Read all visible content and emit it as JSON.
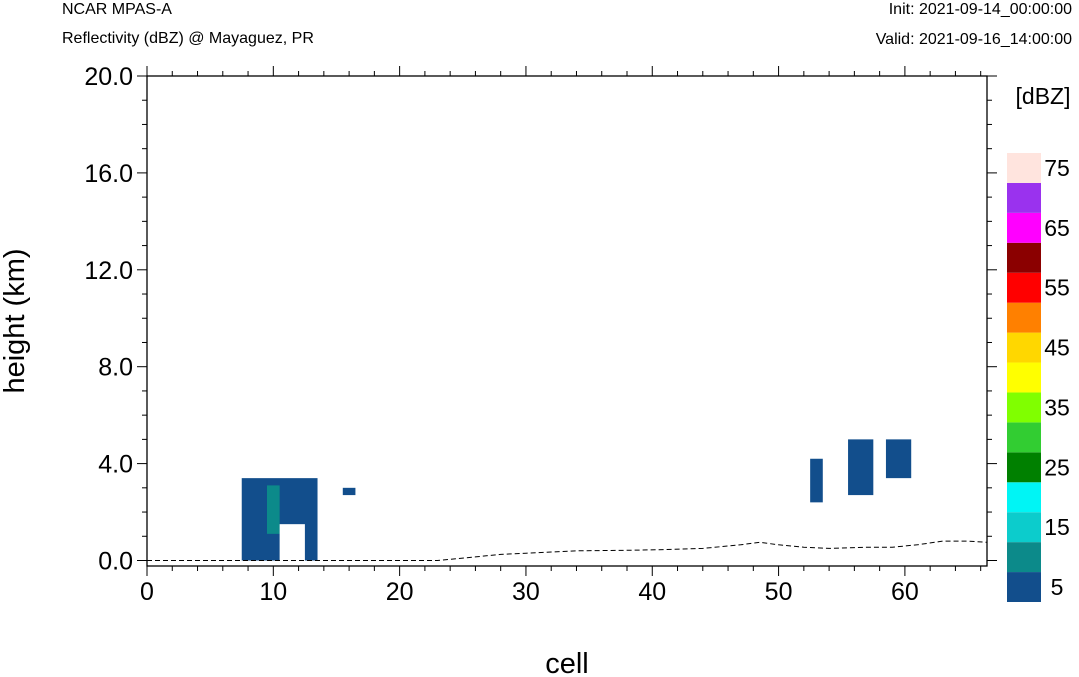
{
  "header": {
    "left_line1": "NCAR MPAS-A",
    "left_line2": "Reflectivity (dBZ) @ Mayaguez, PR",
    "right_line1": "Init: 2021-09-14_00:00:00",
    "right_line2": "Valid: 2021-09-16_14:00:00"
  },
  "chart_data": {
    "type": "heatmap",
    "title": "Reflectivity (dBZ) @ Mayaguez, PR",
    "xlabel": "cell",
    "ylabel": "height (km)",
    "xlim": [
      0,
      66.5
    ],
    "ylim": [
      0,
      20
    ],
    "x_ticks": [
      0,
      10,
      20,
      30,
      40,
      50,
      60
    ],
    "x_tick_labels": [
      "0",
      "10",
      "20",
      "30",
      "40",
      "50",
      "60"
    ],
    "y_ticks": [
      0,
      4,
      8,
      12,
      16,
      20
    ],
    "y_tick_labels": [
      "0.0",
      "4.0",
      "8.0",
      "12.0",
      "16.0",
      "20.0"
    ],
    "colorbar": {
      "unit_label": "[dBZ]",
      "levels": [
        5,
        10,
        15,
        20,
        25,
        30,
        35,
        40,
        45,
        50,
        55,
        60,
        65,
        70,
        75
      ],
      "colors": [
        "#124e8c",
        "#0c8a8a",
        "#0ccccc",
        "#00f5f5",
        "#008000",
        "#32cd32",
        "#80ff00",
        "#ffff00",
        "#ffd700",
        "#ff8000",
        "#ff0000",
        "#8b0000",
        "#ff00ff",
        "#9a32ee",
        "#ffe4de"
      ],
      "tick_labels": [
        "5",
        "15",
        "25",
        "35",
        "45",
        "55",
        "65",
        "75"
      ]
    },
    "cells": [
      {
        "x0": 7.5,
        "x1": 13.5,
        "y0": 0.0,
        "y1": 3.4,
        "dbz": 5
      },
      {
        "x0": 9.5,
        "x1": 10.5,
        "y0": 1.1,
        "y1": 3.1,
        "dbz": 10
      },
      {
        "x0": 15.5,
        "x1": 16.5,
        "y0": 2.7,
        "y1": 3.0,
        "dbz": 5
      },
      {
        "x0": 52.5,
        "x1": 53.5,
        "y0": 2.4,
        "y1": 4.2,
        "dbz": 5
      },
      {
        "x0": 55.5,
        "x1": 57.5,
        "y0": 2.7,
        "y1": 5.0,
        "dbz": 5
      },
      {
        "x0": 58.5,
        "x1": 60.5,
        "y0": 3.4,
        "y1": 5.0,
        "dbz": 5
      }
    ],
    "blanks": [
      {
        "x0": 10.5,
        "x1": 12.5,
        "y0": 0.0,
        "y1": 1.5
      }
    ],
    "terrain": [
      [
        0,
        0.0
      ],
      [
        23,
        0.0
      ],
      [
        24,
        0.05
      ],
      [
        26,
        0.15
      ],
      [
        28,
        0.25
      ],
      [
        30,
        0.3
      ],
      [
        32,
        0.35
      ],
      [
        34,
        0.4
      ],
      [
        38,
        0.42
      ],
      [
        41,
        0.45
      ],
      [
        44,
        0.5
      ],
      [
        47,
        0.65
      ],
      [
        48.5,
        0.75
      ],
      [
        50,
        0.65
      ],
      [
        52,
        0.55
      ],
      [
        54,
        0.5
      ],
      [
        57,
        0.55
      ],
      [
        59,
        0.55
      ],
      [
        61,
        0.65
      ],
      [
        63,
        0.8
      ],
      [
        65,
        0.8
      ],
      [
        66.5,
        0.75
      ]
    ]
  }
}
